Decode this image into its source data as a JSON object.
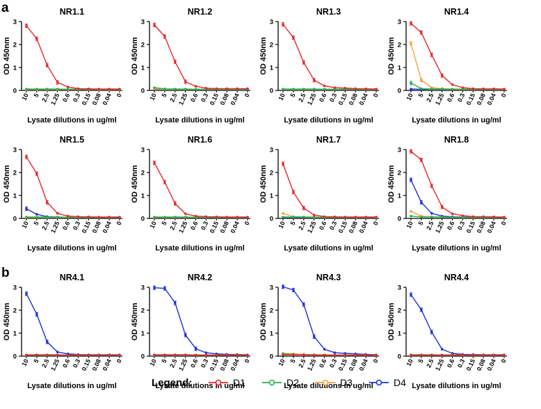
{
  "panel_labels": [
    "a",
    "b"
  ],
  "legend": {
    "title": "Legend:",
    "entries": [
      {
        "name": "D1",
        "color": "#e8262a"
      },
      {
        "name": "D2",
        "color": "#22b14c"
      },
      {
        "name": "D3",
        "color": "#f7a03c"
      },
      {
        "name": "D4",
        "color": "#1c2fd8"
      }
    ]
  },
  "chart_data": [
    {
      "type": "line",
      "title": "NR1.1",
      "xlabel": "Lysate dilutions in ug/ml",
      "ylabel": "OD 450nm",
      "categories": [
        "10",
        "5",
        "2.5",
        "1.25",
        "0.6",
        "0.3",
        "0.15",
        "0.08",
        "0.04",
        "0"
      ],
      "ylim": [
        0,
        3
      ],
      "yticks": [
        0,
        1,
        2,
        3
      ],
      "series": [
        {
          "name": "D1",
          "values": [
            2.82,
            2.25,
            1.1,
            0.35,
            0.15,
            0.08,
            0.07,
            0.06,
            0.06,
            0.06
          ]
        },
        {
          "name": "D2",
          "values": [
            0.06,
            0.06,
            0.06,
            0.06,
            0.05,
            0.05,
            0.05,
            0.05,
            0.05,
            0.05
          ]
        },
        {
          "name": "D3",
          "values": [
            0.04,
            0.04,
            0.04,
            0.04,
            0.04,
            0.04,
            0.04,
            0.04,
            0.04,
            0.04
          ]
        },
        {
          "name": "D4",
          "values": [
            0.05,
            0.05,
            0.05,
            0.05,
            0.05,
            0.05,
            0.05,
            0.05,
            0.05,
            0.05
          ]
        }
      ]
    },
    {
      "type": "line",
      "title": "NR1.2",
      "xlabel": "Lysate dilutions in ug/ml",
      "ylabel": "OD 450nm",
      "categories": [
        "10",
        "5",
        "2.5",
        "1.25",
        "0.6",
        "0.3",
        "0.15",
        "0.08",
        "0.04",
        "0"
      ],
      "ylim": [
        0,
        3
      ],
      "yticks": [
        0,
        1,
        2,
        3
      ],
      "series": [
        {
          "name": "D1",
          "values": [
            2.85,
            2.35,
            1.25,
            0.38,
            0.18,
            0.1,
            0.08,
            0.08,
            0.08,
            0.08
          ]
        },
        {
          "name": "D2",
          "values": [
            0.12,
            0.07,
            0.06,
            0.06,
            0.05,
            0.05,
            0.05,
            0.05,
            0.05,
            0.05
          ]
        },
        {
          "name": "D3",
          "values": [
            0.06,
            0.05,
            0.05,
            0.05,
            0.05,
            0.05,
            0.05,
            0.05,
            0.05,
            0.05
          ]
        },
        {
          "name": "D4",
          "values": [
            0.05,
            0.05,
            0.05,
            0.05,
            0.05,
            0.05,
            0.05,
            0.05,
            0.05,
            0.05
          ]
        }
      ]
    },
    {
      "type": "line",
      "title": "NR1.3",
      "xlabel": "Lysate dilutions in ug/ml",
      "ylabel": "OD 450nm",
      "categories": [
        "10",
        "5",
        "2.5",
        "1.25",
        "0.6",
        "0.3",
        "0.15",
        "0.08",
        "0.04",
        "0"
      ],
      "ylim": [
        0,
        3
      ],
      "yticks": [
        0,
        1,
        2,
        3
      ],
      "series": [
        {
          "name": "D1",
          "values": [
            2.88,
            2.3,
            1.22,
            0.45,
            0.2,
            0.12,
            0.1,
            0.08,
            0.07,
            0.06
          ]
        },
        {
          "name": "D2",
          "values": [
            0.06,
            0.06,
            0.06,
            0.06,
            0.05,
            0.05,
            0.05,
            0.05,
            0.05,
            0.05
          ]
        },
        {
          "name": "D3",
          "values": [
            0.05,
            0.05,
            0.05,
            0.05,
            0.05,
            0.05,
            0.05,
            0.05,
            0.05,
            0.05
          ]
        },
        {
          "name": "D4",
          "values": [
            0.05,
            0.05,
            0.05,
            0.05,
            0.05,
            0.05,
            0.05,
            0.05,
            0.05,
            0.05
          ]
        }
      ]
    },
    {
      "type": "line",
      "title": "NR1.4",
      "xlabel": "Lysate dilutions in ug/ml",
      "ylabel": "OD 450nm",
      "categories": [
        "10",
        "5",
        "2.5",
        "1.25",
        "0.6",
        "0.3",
        "0.15",
        "0.08",
        "0.04",
        "0"
      ],
      "ylim": [
        0,
        3
      ],
      "yticks": [
        0,
        1,
        2,
        3
      ],
      "series": [
        {
          "name": "D1",
          "values": [
            2.92,
            2.52,
            1.55,
            0.65,
            0.25,
            0.12,
            0.08,
            0.07,
            0.07,
            0.06
          ]
        },
        {
          "name": "D2",
          "values": [
            0.32,
            0.08,
            0.06,
            0.06,
            0.05,
            0.05,
            0.05,
            0.05,
            0.05,
            0.05
          ]
        },
        {
          "name": "D3",
          "values": [
            2.05,
            0.45,
            0.12,
            0.08,
            0.06,
            0.06,
            0.05,
            0.05,
            0.05,
            0.05
          ]
        },
        {
          "name": "D4",
          "values": [
            0.06,
            0.05,
            0.05,
            0.05,
            0.05,
            0.05,
            0.05,
            0.05,
            0.05,
            0.05
          ]
        }
      ]
    },
    {
      "type": "line",
      "title": "NR1.5",
      "xlabel": "Lysate dilutions in ug/ml",
      "ylabel": "OD 450nm",
      "categories": [
        "10",
        "5",
        "2.5",
        "1.25",
        "0.6",
        "0.3",
        "0.15",
        "0.08",
        "0.04",
        "0"
      ],
      "ylim": [
        0,
        3
      ],
      "yticks": [
        0,
        1,
        2,
        3
      ],
      "series": [
        {
          "name": "D1",
          "values": [
            2.68,
            1.95,
            0.7,
            0.22,
            0.1,
            0.08,
            0.07,
            0.06,
            0.06,
            0.06
          ]
        },
        {
          "name": "D2",
          "values": [
            0.06,
            0.06,
            0.06,
            0.06,
            0.05,
            0.05,
            0.05,
            0.05,
            0.05,
            0.05
          ]
        },
        {
          "name": "D3",
          "values": [
            0.05,
            0.05,
            0.05,
            0.05,
            0.05,
            0.05,
            0.05,
            0.05,
            0.05,
            0.05
          ]
        },
        {
          "name": "D4",
          "values": [
            0.42,
            0.18,
            0.08,
            0.06,
            0.05,
            0.05,
            0.05,
            0.05,
            0.05,
            0.05
          ]
        }
      ]
    },
    {
      "type": "line",
      "title": "NR1.6",
      "xlabel": "Lysate dilutions in ug/ml",
      "ylabel": "OD 450nm",
      "categories": [
        "10",
        "5",
        "2.5",
        "1.25",
        "0.6",
        "0.3",
        "0.15",
        "0.08",
        "0.04",
        "0"
      ],
      "ylim": [
        0,
        3
      ],
      "yticks": [
        0,
        1,
        2,
        3
      ],
      "series": [
        {
          "name": "D1",
          "values": [
            2.42,
            1.58,
            0.65,
            0.2,
            0.1,
            0.08,
            0.07,
            0.06,
            0.06,
            0.06
          ]
        },
        {
          "name": "D2",
          "values": [
            0.06,
            0.06,
            0.06,
            0.06,
            0.05,
            0.05,
            0.05,
            0.05,
            0.05,
            0.05
          ]
        },
        {
          "name": "D3",
          "values": [
            0.05,
            0.05,
            0.05,
            0.05,
            0.05,
            0.05,
            0.05,
            0.05,
            0.05,
            0.05
          ]
        },
        {
          "name": "D4",
          "values": [
            0.05,
            0.05,
            0.05,
            0.05,
            0.05,
            0.05,
            0.05,
            0.05,
            0.05,
            0.05
          ]
        }
      ]
    },
    {
      "type": "line",
      "title": "NR1.7",
      "xlabel": "Lysate dilutions in ug/ml",
      "ylabel": "OD 450nm",
      "categories": [
        "10",
        "5",
        "2.5",
        "1.25",
        "0.6",
        "0.3",
        "0.15",
        "0.08",
        "0.04",
        "0"
      ],
      "ylim": [
        0,
        3
      ],
      "yticks": [
        0,
        1,
        2,
        3
      ],
      "series": [
        {
          "name": "D1",
          "values": [
            2.38,
            1.15,
            0.45,
            0.15,
            0.08,
            0.07,
            0.06,
            0.06,
            0.06,
            0.06
          ]
        },
        {
          "name": "D2",
          "values": [
            0.06,
            0.06,
            0.06,
            0.06,
            0.05,
            0.05,
            0.05,
            0.05,
            0.05,
            0.05
          ]
        },
        {
          "name": "D3",
          "values": [
            0.22,
            0.08,
            0.06,
            0.05,
            0.05,
            0.05,
            0.05,
            0.05,
            0.05,
            0.05
          ]
        },
        {
          "name": "D4",
          "values": [
            0.05,
            0.05,
            0.05,
            0.05,
            0.05,
            0.05,
            0.05,
            0.05,
            0.05,
            0.05
          ]
        }
      ]
    },
    {
      "type": "line",
      "title": "NR1.8",
      "xlabel": "Lysate dilutions in ug/ml",
      "ylabel": "OD 450nm",
      "categories": [
        "10",
        "5",
        "2.5",
        "1.25",
        "0.6",
        "0.3",
        "0.15",
        "0.08",
        "0.04",
        "0"
      ],
      "ylim": [
        0,
        3
      ],
      "yticks": [
        0,
        1,
        2,
        3
      ],
      "series": [
        {
          "name": "D1",
          "values": [
            2.92,
            2.55,
            1.42,
            0.5,
            0.2,
            0.12,
            0.08,
            0.08,
            0.07,
            0.06
          ]
        },
        {
          "name": "D2",
          "values": [
            0.1,
            0.06,
            0.06,
            0.06,
            0.05,
            0.05,
            0.05,
            0.05,
            0.05,
            0.05
          ]
        },
        {
          "name": "D3",
          "values": [
            0.3,
            0.1,
            0.07,
            0.06,
            0.05,
            0.05,
            0.05,
            0.05,
            0.05,
            0.05
          ]
        },
        {
          "name": "D4",
          "values": [
            1.68,
            0.7,
            0.22,
            0.1,
            0.07,
            0.06,
            0.06,
            0.06,
            0.05,
            0.05
          ]
        }
      ]
    },
    {
      "type": "line",
      "title": "NR4.1",
      "xlabel": "Lysate dilutions in ug/ml",
      "ylabel": "OD 450nm",
      "categories": [
        "10",
        "5",
        "2.5",
        "1.25",
        "0.6",
        "0.3",
        "0.15",
        "0.08",
        "0.04",
        "0"
      ],
      "ylim": [
        0,
        3
      ],
      "yticks": [
        0,
        1,
        2,
        3
      ],
      "series": [
        {
          "name": "D1",
          "values": [
            0.05,
            0.05,
            0.05,
            0.05,
            0.05,
            0.05,
            0.05,
            0.05,
            0.05,
            0.05
          ]
        },
        {
          "name": "D2",
          "values": [
            0.06,
            0.06,
            0.06,
            0.06,
            0.05,
            0.05,
            0.05,
            0.05,
            0.05,
            0.05
          ]
        },
        {
          "name": "D3",
          "values": [
            0.05,
            0.05,
            0.05,
            0.05,
            0.05,
            0.05,
            0.05,
            0.05,
            0.05,
            0.05
          ]
        },
        {
          "name": "D4",
          "values": [
            2.72,
            1.82,
            0.62,
            0.18,
            0.1,
            0.07,
            0.06,
            0.06,
            0.06,
            0.06
          ]
        }
      ]
    },
    {
      "type": "line",
      "title": "NR4.2",
      "xlabel": "Lysate dilutions in ug/ml",
      "ylabel": "OD 450nm",
      "categories": [
        "10",
        "5",
        "2.5",
        "1.25",
        "0.6",
        "0.3",
        "0.15",
        "0.08",
        "0.04",
        "0"
      ],
      "ylim": [
        0,
        3
      ],
      "yticks": [
        0,
        1,
        2,
        3
      ],
      "series": [
        {
          "name": "D1",
          "values": [
            0.06,
            0.06,
            0.06,
            0.06,
            0.05,
            0.05,
            0.05,
            0.05,
            0.05,
            0.05
          ]
        },
        {
          "name": "D2",
          "values": [
            0.05,
            0.05,
            0.05,
            0.05,
            0.05,
            0.05,
            0.05,
            0.05,
            0.05,
            0.05
          ]
        },
        {
          "name": "D3",
          "values": [
            0.05,
            0.05,
            0.05,
            0.05,
            0.05,
            0.05,
            0.05,
            0.05,
            0.05,
            0.05
          ]
        },
        {
          "name": "D4",
          "values": [
            2.98,
            2.95,
            2.32,
            0.92,
            0.32,
            0.15,
            0.1,
            0.08,
            0.07,
            0.06
          ]
        }
      ]
    },
    {
      "type": "line",
      "title": "NR4.3",
      "xlabel": "Lysate dilutions in ug/ml",
      "ylabel": "OD 450nm",
      "categories": [
        "10",
        "5",
        "2.5",
        "1.25",
        "0.6",
        "0.3",
        "0.15",
        "0.08",
        "0.04",
        "0"
      ],
      "ylim": [
        0,
        3
      ],
      "yticks": [
        0,
        1,
        2,
        3
      ],
      "series": [
        {
          "name": "D1",
          "values": [
            0.06,
            0.06,
            0.06,
            0.05,
            0.05,
            0.05,
            0.05,
            0.05,
            0.05,
            0.05
          ]
        },
        {
          "name": "D2",
          "values": [
            0.1,
            0.08,
            0.06,
            0.06,
            0.05,
            0.05,
            0.05,
            0.05,
            0.05,
            0.05
          ]
        },
        {
          "name": "D3",
          "values": [
            0.12,
            0.1,
            0.08,
            0.06,
            0.06,
            0.05,
            0.05,
            0.05,
            0.05,
            0.05
          ]
        },
        {
          "name": "D4",
          "values": [
            3.02,
            2.88,
            2.25,
            0.85,
            0.3,
            0.15,
            0.12,
            0.1,
            0.08,
            0.06
          ]
        }
      ]
    },
    {
      "type": "line",
      "title": "NR4.4",
      "xlabel": "Lysate dilutions in ug/ml",
      "ylabel": "OD 450nm",
      "categories": [
        "10",
        "5",
        "2.5",
        "1.25",
        "0.6",
        "0.3",
        "0.15",
        "0.08",
        "0.04",
        "0"
      ],
      "ylim": [
        0,
        3
      ],
      "yticks": [
        0,
        1,
        2,
        3
      ],
      "series": [
        {
          "name": "D1",
          "values": [
            0.05,
            0.05,
            0.05,
            0.05,
            0.05,
            0.05,
            0.05,
            0.05,
            0.05,
            0.05
          ]
        },
        {
          "name": "D2",
          "values": [
            0.06,
            0.06,
            0.06,
            0.05,
            0.05,
            0.05,
            0.05,
            0.05,
            0.05,
            0.05
          ]
        },
        {
          "name": "D3",
          "values": [
            0.05,
            0.05,
            0.05,
            0.05,
            0.05,
            0.05,
            0.05,
            0.05,
            0.05,
            0.05
          ]
        },
        {
          "name": "D4",
          "values": [
            2.68,
            2.02,
            1.05,
            0.3,
            0.12,
            0.08,
            0.07,
            0.06,
            0.06,
            0.06
          ]
        }
      ]
    }
  ]
}
